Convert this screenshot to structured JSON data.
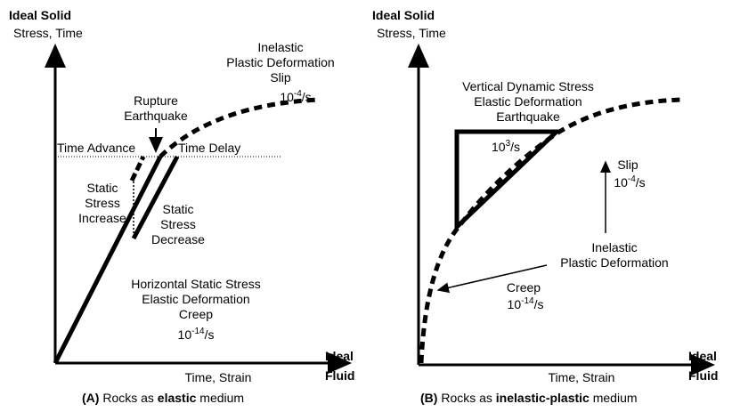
{
  "panel_a": {
    "y_axis_title": "Ideal Solid",
    "y_axis_label": "Stress, Time",
    "x_axis_label": "Time, Strain",
    "x_end_top": "Ideal",
    "x_end_bottom": "Fluid",
    "inelastic": [
      "Inelastic",
      "Plastic Deformation",
      "Slip"
    ],
    "slip_rate": {
      "base": "10",
      "exp": "-4",
      "unit": "/s"
    },
    "rupture": [
      "Rupture",
      "Earthquake"
    ],
    "time_advance": "Time Advance",
    "time_delay": "Time Delay",
    "increase": [
      "Static",
      "Stress",
      "Increase"
    ],
    "decrease": [
      "Static",
      "Stress",
      "Decrease"
    ],
    "elastic": [
      "Horizontal Static Stress",
      "Elastic Deformation",
      "Creep"
    ],
    "creep_rate": {
      "base": "10",
      "exp": "-14",
      "unit": "/s"
    },
    "caption": {
      "letter": "(A)",
      "pre": "Rocks as",
      "bold": "elastic",
      "post": "medium"
    }
  },
  "panel_b": {
    "y_axis_title": "Ideal Solid",
    "y_axis_label": "Stress, Time",
    "x_axis_label": "Time, Strain",
    "x_end_top": "Ideal",
    "x_end_bottom": "Fluid",
    "dynamic": [
      "Vertical Dynamic Stress",
      "Elastic Deformation",
      "Earthquake"
    ],
    "dynamic_rate": {
      "base": "10",
      "exp": "3",
      "unit": "/s"
    },
    "slip": "Slip",
    "slip_rate": {
      "base": "10",
      "exp": "-4",
      "unit": "/s"
    },
    "inelastic": [
      "Inelastic",
      "Plastic Deformation"
    ],
    "creep": "Creep",
    "creep_rate": {
      "base": "10",
      "exp": "-14",
      "unit": "/s"
    },
    "caption": {
      "letter": "(B)",
      "pre": "Rocks as",
      "bold": "inelastic-plastic",
      "post": "medium"
    }
  }
}
